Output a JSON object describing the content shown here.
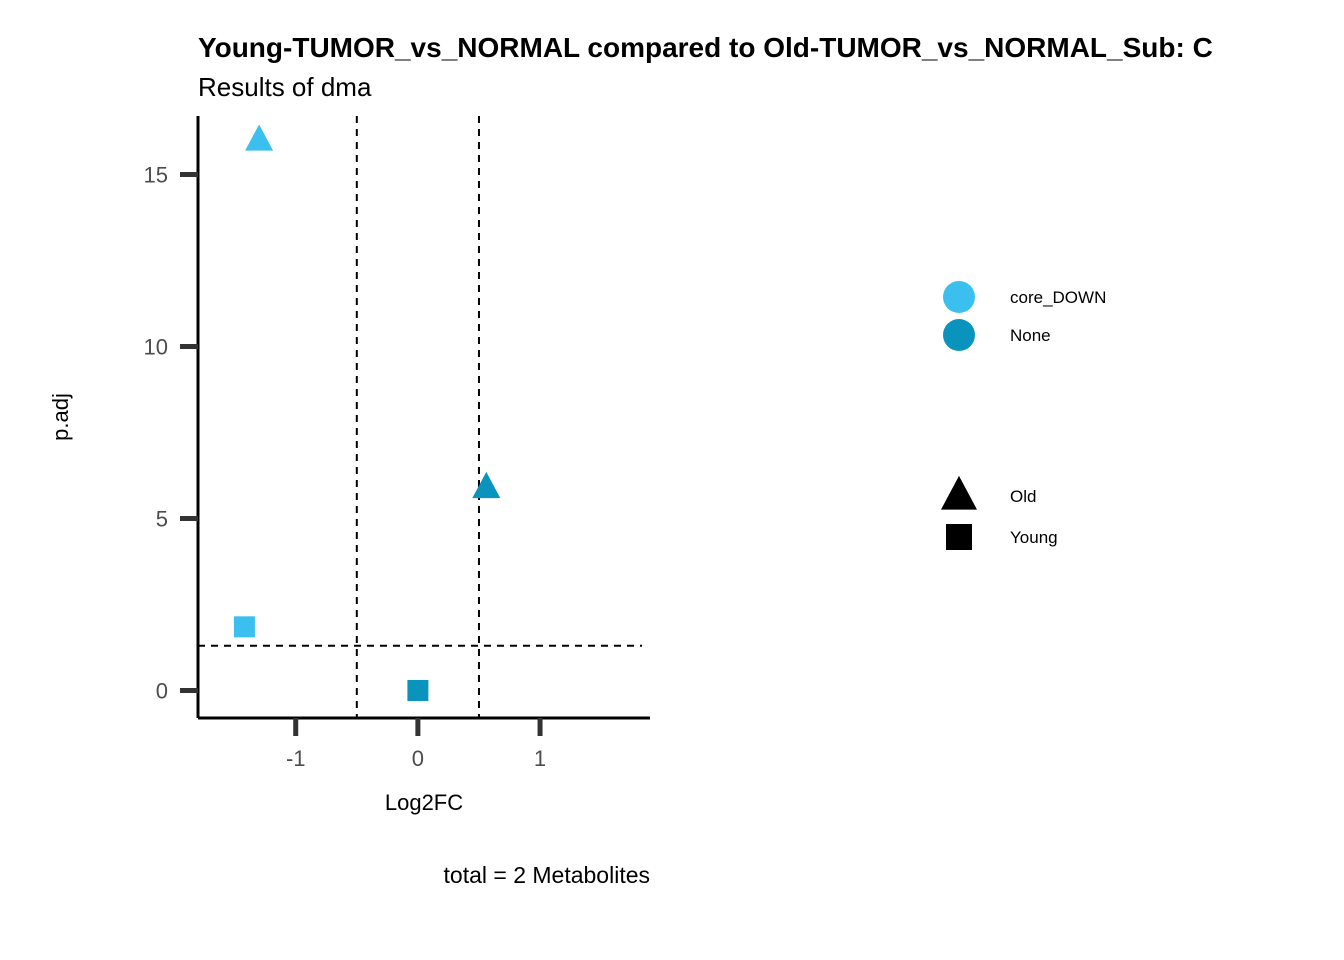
{
  "header": {
    "title": "Young-TUMOR_vs_NORMAL compared to Old-TUMOR_vs_NORMAL_Sub: C",
    "subtitle": "Results of dma"
  },
  "caption": "total = 2 Metabolites",
  "colors": {
    "core_DOWN": "#3bbfef",
    "None": "#0a94bd",
    "axis": "#000000",
    "tick": "#333333",
    "guide": "#000000"
  },
  "chart_data": {
    "type": "scatter",
    "title": "Young-TUMOR_vs_NORMAL compared to Old-TUMOR_vs_NORMAL_Sub: C",
    "subtitle": "Results of dma",
    "xlabel": "Log2FC",
    "ylabel": "p.adj",
    "xlim": [
      -1.8,
      1.9
    ],
    "ylim": [
      -0.8,
      16.7
    ],
    "xticks": [
      -1,
      0,
      1
    ],
    "xtick_labels": [
      "-1",
      "0",
      "1"
    ],
    "yticks": [
      0,
      5,
      10,
      15
    ],
    "ytick_labels": [
      "0",
      "5",
      "10",
      "15"
    ],
    "grid": false,
    "vlines": [
      -0.5,
      0.5
    ],
    "hlines": [
      1.3
    ],
    "points": [
      {
        "x": -1.3,
        "y": 16.0,
        "color_group": "core_DOWN",
        "shape_group": "Old"
      },
      {
        "x": 0.56,
        "y": 5.9,
        "color_group": "None",
        "shape_group": "Old"
      },
      {
        "x": -1.42,
        "y": 1.85,
        "color_group": "core_DOWN",
        "shape_group": "Young"
      },
      {
        "x": 0.0,
        "y": 0.0,
        "color_group": "None",
        "shape_group": "Young"
      }
    ],
    "legend": {
      "position": "right",
      "color": [
        "core_DOWN",
        "None"
      ],
      "shape": [
        "Old",
        "Young"
      ]
    }
  }
}
